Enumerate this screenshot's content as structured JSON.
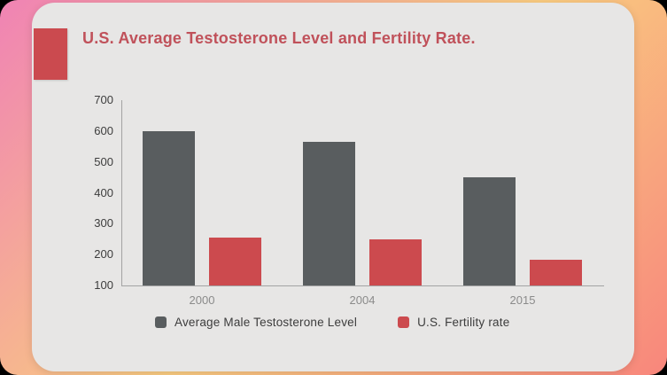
{
  "title": "U.S. Average Testosterone Level and Fertility Rate.",
  "colors": {
    "background_gradient_start": "#f083b4",
    "background_gradient_mid": "#f9cb80",
    "background_gradient_end": "#f8867c",
    "card_background": "#e7e6e5",
    "accent_badge": "#cb4a4f",
    "title_text": "#c0515a",
    "axis_line": "#a3a3a3",
    "y_tick_text": "#3d3d3d",
    "x_tick_text": "#8b8b8b"
  },
  "chart_data": {
    "type": "bar",
    "categories": [
      "2000",
      "2004",
      "2015"
    ],
    "series": [
      {
        "name": "Average Male Testosterone Level",
        "color": "#595d5f",
        "values": [
          600,
          565,
          450
        ]
      },
      {
        "name": "U.S. Fertility rate",
        "color": "#cc4a4e",
        "values": [
          255,
          250,
          183
        ]
      }
    ],
    "title": "U.S. Average Testosterone Level and Fertility Rate.",
    "xlabel": "",
    "ylabel": "",
    "ylim": [
      100,
      700
    ],
    "yticks": [
      700,
      600,
      500,
      400,
      300,
      200,
      100
    ],
    "grid": false,
    "legend_position": "bottom"
  }
}
